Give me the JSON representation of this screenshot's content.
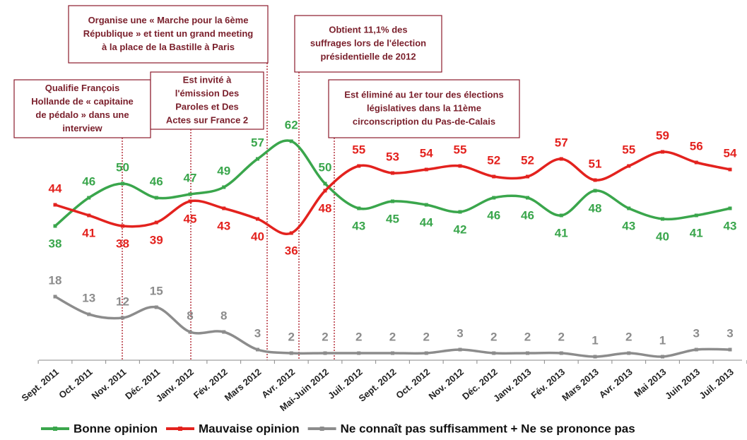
{
  "chart_data": {
    "type": "line",
    "categories": [
      "Sept. 2011",
      "Oct. 2011",
      "Nov. 2011",
      "Déc. 2011",
      "Janv. 2012",
      "Fév. 2012",
      "Mars 2012",
      "Avr. 2012",
      "Mai-Juin 2012",
      "Juil. 2012",
      "Sept. 2012",
      "Oct. 2012",
      "Nov. 2012",
      "Déc. 2012",
      "Janv. 2013",
      "Fév. 2013",
      "Mars 2013",
      "Avr. 2013",
      "Mai 2013",
      "Juin 2013",
      "Juil. 2013"
    ],
    "series": [
      {
        "name": "Bonne opinion",
        "color": "#3aa64c",
        "values": [
          38,
          46,
          50,
          46,
          47,
          49,
          57,
          62,
          50,
          43,
          45,
          44,
          42,
          46,
          46,
          41,
          48,
          43,
          40,
          41,
          43
        ]
      },
      {
        "name": "Mauvaise opinion",
        "color": "#e3221e",
        "values": [
          44,
          41,
          38,
          39,
          45,
          43,
          40,
          36,
          48,
          55,
          53,
          54,
          55,
          52,
          52,
          57,
          51,
          55,
          59,
          56,
          54
        ]
      },
      {
        "name": "Ne connaît pas suffisamment + Ne se prononce pas",
        "color": "#8c8c8c",
        "values": [
          18,
          13,
          12,
          15,
          8,
          8,
          3,
          2,
          2,
          2,
          2,
          2,
          3,
          2,
          2,
          2,
          1,
          2,
          1,
          3,
          3
        ]
      }
    ],
    "annotations": [
      {
        "lines": [
          "Qualifie François",
          "Hollande de « capitaine",
          "de pédalo » dans une",
          "interview"
        ]
      },
      {
        "lines": [
          "Organise une « Marche pour la 6ème",
          "République » et tient un grand meeting",
          "à la place de la Bastille à Paris"
        ]
      },
      {
        "lines": [
          "Est invité à",
          "l'émission Des",
          "Paroles et Des",
          "Actes sur France 2"
        ]
      },
      {
        "lines": [
          "Obtient 11,1% des",
          "suffrages lors de l'élection",
          "présidentielle de 2012"
        ]
      },
      {
        "lines": [
          "Est éliminé au 1er tour des élections",
          "législatives dans la 11ème",
          "circonscription du Pas-de-Calais"
        ]
      }
    ],
    "legend": "bottom"
  }
}
